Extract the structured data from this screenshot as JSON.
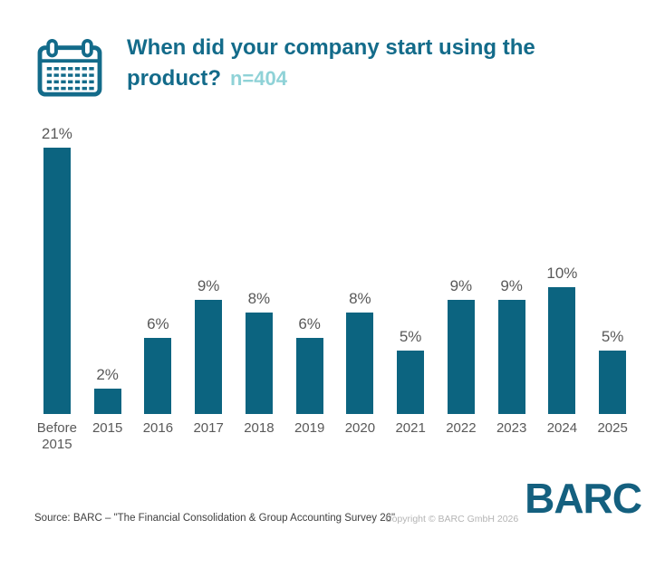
{
  "header": {
    "title": "When did your company start using the product?",
    "sample_label": "n=404",
    "icon": "calendar-icon"
  },
  "chart_data": {
    "type": "bar",
    "title": "When did your company start using the product?",
    "sample_size": "n=404",
    "categories": [
      "Before 2015",
      "2015",
      "2016",
      "2017",
      "2018",
      "2019",
      "2020",
      "2021",
      "2022",
      "2023",
      "2024",
      "2025"
    ],
    "values": [
      21,
      2,
      6,
      9,
      8,
      6,
      8,
      5,
      9,
      9,
      10,
      5
    ],
    "labels": [
      "21%",
      "2%",
      "6%",
      "9%",
      "8%",
      "6%",
      "8%",
      "5%",
      "9%",
      "9%",
      "10%",
      "5%"
    ],
    "unit": "%",
    "ylim": [
      0,
      22
    ],
    "grid": false,
    "legend_position": "none",
    "bar_color": "#0c6480"
  },
  "footer": {
    "source": "Source: BARC – \"The Financial Consolidation & Group Accounting Survey 26\"",
    "copyright": "Copyright © BARC GmbH 2026",
    "logo": "BARC"
  },
  "colors": {
    "title": "#136b8a",
    "subtitle": "#8fd2d7",
    "bar": "#0c6480",
    "value_label": "#595959",
    "axis_label": "#595959",
    "source_text": "#3f3f3f",
    "copyright_text": "#b4b4b4",
    "logo": "#14607f",
    "icon": "#136b8a"
  }
}
